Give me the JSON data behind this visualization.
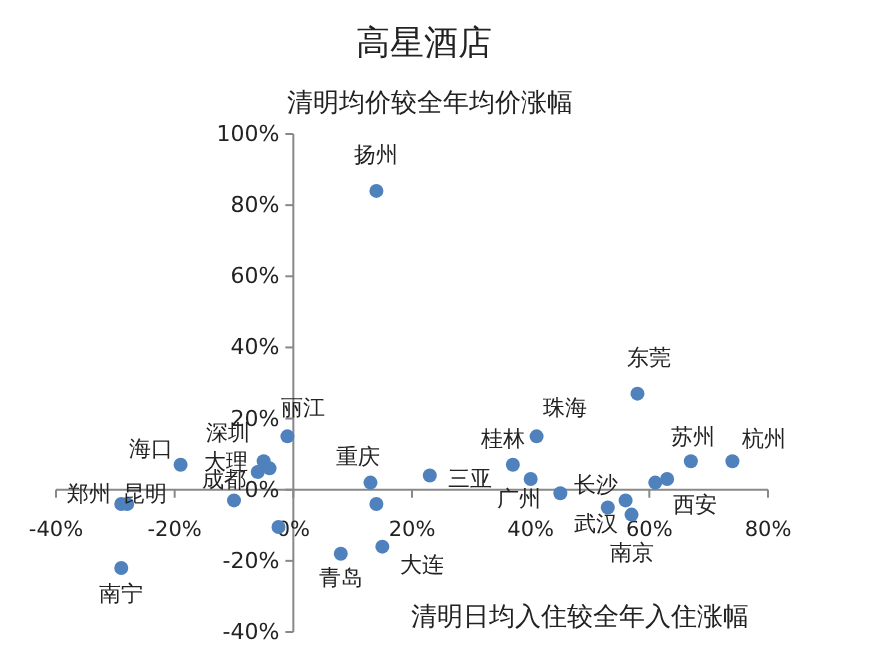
{
  "chart_data": {
    "type": "scatter",
    "title": "高星酒店",
    "ylabel": "清明均价较全年均价涨幅",
    "xlabel": "清明日均入住较全年入住涨幅",
    "x": [
      14,
      -1,
      -19,
      -5,
      -4,
      -10,
      -29,
      -28,
      -29,
      8,
      15,
      13,
      23,
      58,
      41,
      37,
      40,
      45,
      53,
      57,
      61,
      67,
      74,
      -6,
      -2.5,
      14,
      56,
      63
    ],
    "values": [
      84,
      15,
      7,
      8,
      6,
      -3,
      -4,
      -4,
      -22,
      -18,
      -16,
      2,
      4,
      27,
      15,
      7,
      3,
      -1,
      -5,
      -7,
      2,
      8,
      8,
      5,
      -10.5,
      -4,
      -3,
      3
    ],
    "color": "#4f81bd",
    "marker": "circle",
    "xlim": [
      -40,
      80
    ],
    "ylim": [
      -40,
      100
    ],
    "xticks": [
      {
        "value": -40,
        "label": "-40%"
      },
      {
        "value": -20,
        "label": "-20%"
      },
      {
        "value": 0,
        "label": "0%"
      },
      {
        "value": 20,
        "label": "20%"
      },
      {
        "value": 40,
        "label": "40%"
      },
      {
        "value": 60,
        "label": "60%"
      },
      {
        "value": 80,
        "label": "80%"
      }
    ],
    "yticks": [
      {
        "value": -40,
        "label": "-40%"
      },
      {
        "value": -20,
        "label": "-20%"
      },
      {
        "value": 0,
        "label": "0%"
      },
      {
        "value": 20,
        "label": "20%"
      },
      {
        "value": 40,
        "label": "40%"
      },
      {
        "value": 60,
        "label": "60%"
      },
      {
        "value": 80,
        "label": "80%"
      },
      {
        "value": 100,
        "label": "100%"
      }
    ],
    "annotations": [
      {
        "text": "扬州",
        "x": 14,
        "y": 84
      },
      {
        "text": "丽江",
        "x": -1,
        "y": 15
      },
      {
        "text": "海口",
        "x": -19,
        "y": 7
      },
      {
        "text": "深圳",
        "x": -5,
        "y": 8
      },
      {
        "text": "大理",
        "x": -4,
        "y": 6
      },
      {
        "text": "成都",
        "x": -10,
        "y": -3
      },
      {
        "text": "郑州",
        "x": -29,
        "y": -4
      },
      {
        "text": "昆明",
        "x": -28,
        "y": -4
      },
      {
        "text": "南宁",
        "x": -29,
        "y": -22
      },
      {
        "text": "青岛",
        "x": 8,
        "y": -18
      },
      {
        "text": "大连",
        "x": 15,
        "y": -16
      },
      {
        "text": "重庆",
        "x": 13,
        "y": 2
      },
      {
        "text": "三亚",
        "x": 23,
        "y": 4
      },
      {
        "text": "东莞",
        "x": 58,
        "y": 27
      },
      {
        "text": "珠海",
        "x": 41,
        "y": 15
      },
      {
        "text": "桂林",
        "x": 37,
        "y": 7
      },
      {
        "text": "广州",
        "x": 40,
        "y": 3
      },
      {
        "text": "长沙",
        "x": 45,
        "y": -1
      },
      {
        "text": "武汉",
        "x": 53,
        "y": -5
      },
      {
        "text": "南京",
        "x": 57,
        "y": -7
      },
      {
        "text": "西安",
        "x": 61,
        "y": 2
      },
      {
        "text": "苏州",
        "x": 67,
        "y": 8
      },
      {
        "text": "杭州",
        "x": 74,
        "y": 8
      }
    ]
  }
}
